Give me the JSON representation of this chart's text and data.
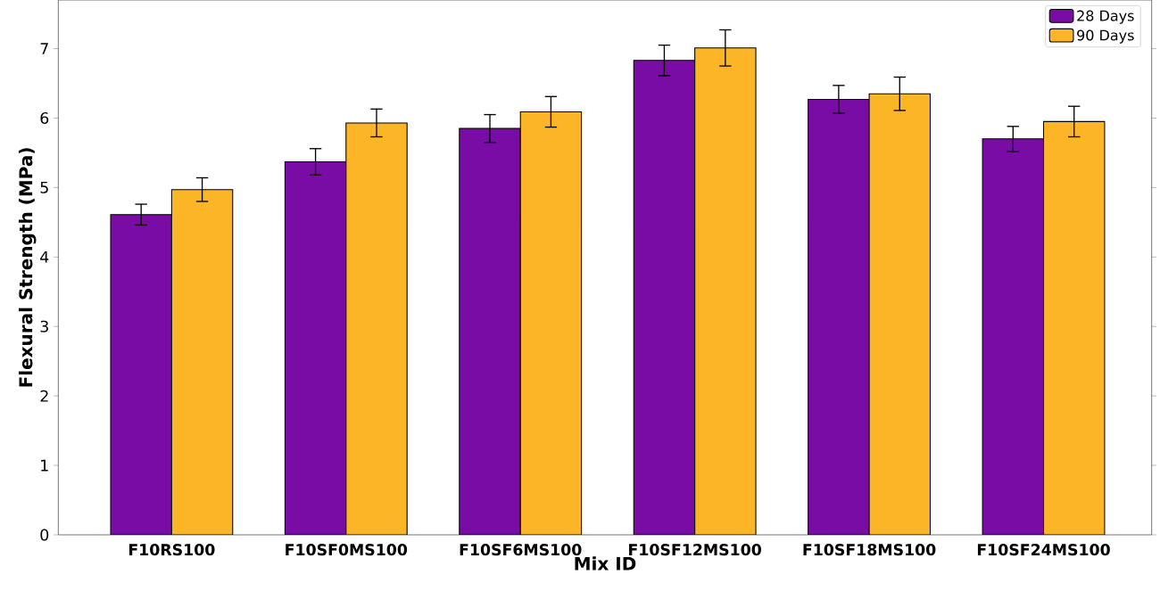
{
  "chart_data": {
    "type": "bar",
    "xlabel": "Mix ID",
    "ylabel": "Flexural Strength (MPa)",
    "categories": [
      "F10RS100",
      "F10SF0MS100",
      "F10SF6MS100",
      "F10SF12MS100",
      "F10SF18MS100",
      "F10SF24MS100"
    ],
    "series": [
      {
        "name": "28 Days",
        "color": "#7a0ca6",
        "values": [
          4.61,
          5.37,
          5.85,
          6.83,
          6.27,
          5.7
        ],
        "errors": [
          0.15,
          0.19,
          0.2,
          0.22,
          0.2,
          0.18
        ]
      },
      {
        "name": "90 Days",
        "color": "#fbb526",
        "values": [
          4.97,
          5.93,
          6.09,
          7.01,
          6.35,
          5.95
        ],
        "errors": [
          0.17,
          0.2,
          0.22,
          0.26,
          0.24,
          0.22
        ]
      }
    ],
    "ylim": [
      0,
      7.7
    ],
    "yticks": [
      0,
      1,
      2,
      3,
      4,
      5,
      6,
      7
    ],
    "legend": "top right",
    "grid": false
  }
}
